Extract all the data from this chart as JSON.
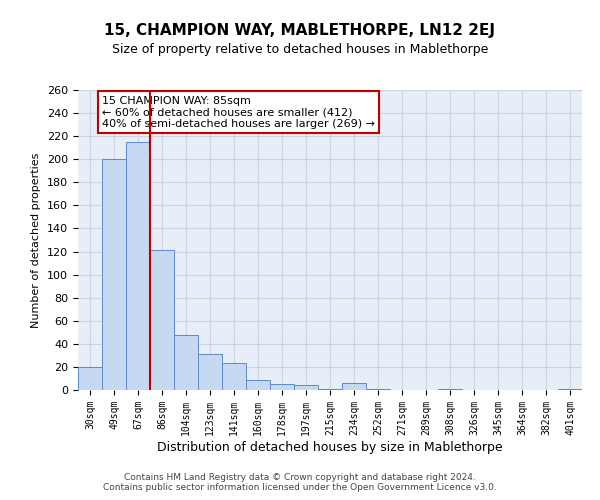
{
  "title": "15, CHAMPION WAY, MABLETHORPE, LN12 2EJ",
  "subtitle": "Size of property relative to detached houses in Mablethorpe",
  "xlabel": "Distribution of detached houses by size in Mablethorpe",
  "ylabel": "Number of detached properties",
  "categories": [
    "30sqm",
    "49sqm",
    "67sqm",
    "86sqm",
    "104sqm",
    "123sqm",
    "141sqm",
    "160sqm",
    "178sqm",
    "197sqm",
    "215sqm",
    "234sqm",
    "252sqm",
    "271sqm",
    "289sqm",
    "308sqm",
    "326sqm",
    "345sqm",
    "364sqm",
    "382sqm",
    "401sqm"
  ],
  "values": [
    20,
    200,
    215,
    121,
    48,
    31,
    23,
    9,
    5,
    4,
    1,
    6,
    1,
    0,
    0,
    1,
    0,
    0,
    0,
    0,
    1
  ],
  "bar_color": "#c6d9f0",
  "bar_edge_color": "#5b8bc7",
  "grid_color": "#c8d4e8",
  "vline_x_index": 3,
  "vline_color": "#c00000",
  "annotation_text": "15 CHAMPION WAY: 85sqm\n← 60% of detached houses are smaller (412)\n40% of semi-detached houses are larger (269) →",
  "annotation_box_edge": "#c00000",
  "ylim": [
    0,
    260
  ],
  "yticks": [
    0,
    20,
    40,
    60,
    80,
    100,
    120,
    140,
    160,
    180,
    200,
    220,
    240,
    260
  ],
  "footer_line1": "Contains HM Land Registry data © Crown copyright and database right 2024.",
  "footer_line2": "Contains public sector information licensed under the Open Government Licence v3.0.",
  "bg_color": "#ffffff",
  "plot_bg_color": "#e8eef8"
}
